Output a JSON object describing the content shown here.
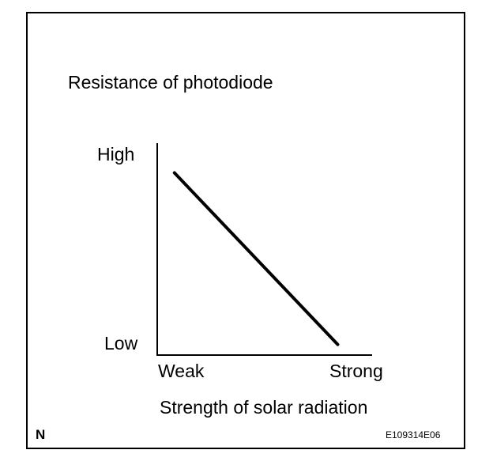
{
  "chart_data": {
    "type": "line",
    "title": "Resistance of photodiode",
    "xlabel": "Strength of solar radiation",
    "ylabel": "",
    "x_tick_labels": [
      "Weak",
      "Strong"
    ],
    "y_tick_labels": [
      "Low",
      "High"
    ],
    "xlim": [
      0,
      1
    ],
    "ylim": [
      0,
      1
    ],
    "grid": false,
    "series": [
      {
        "values": [
          {
            "x": 0.08,
            "y": 0.86
          },
          {
            "x": 0.84,
            "y": 0.05
          }
        ]
      }
    ]
  },
  "footer": {
    "corner_mark": "N",
    "figure_code": "E109314E06"
  }
}
